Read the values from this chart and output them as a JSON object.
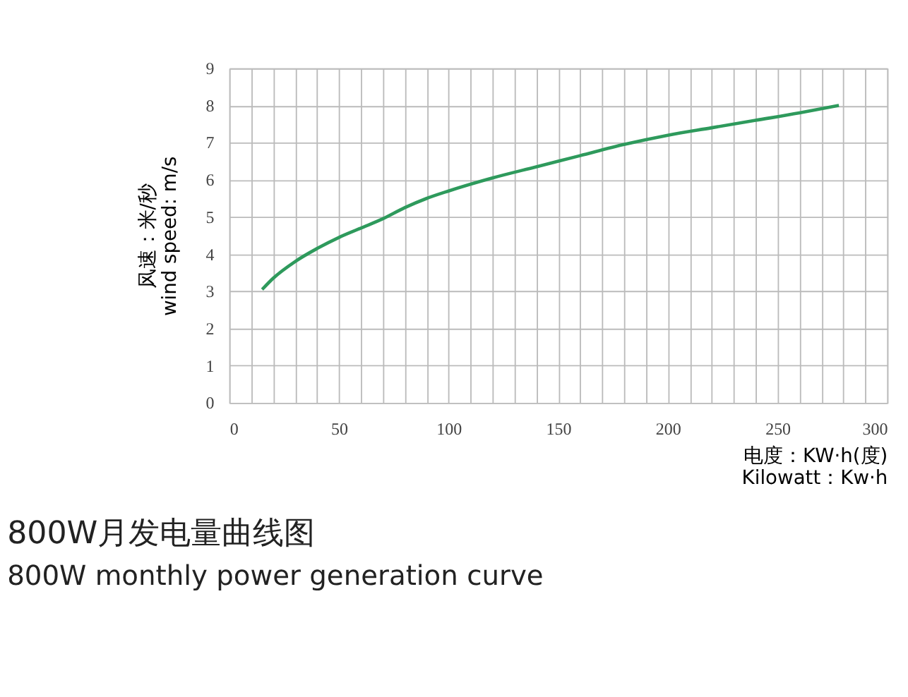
{
  "chart_data": {
    "type": "line",
    "title": "800W月发电量曲线图",
    "subtitle": "800W monthly power generation curve",
    "xlabel": [
      "电度：KW·h(度)",
      "Kilowatt：Kw·h"
    ],
    "ylabel": [
      "风速：米/秒",
      "wind speed: m/s"
    ],
    "x": [
      15,
      20,
      30,
      40,
      50,
      60,
      70,
      80,
      90,
      100,
      120,
      140,
      160,
      180,
      200,
      220,
      240,
      260,
      278
    ],
    "series": [
      {
        "color": "#2e9a5c",
        "values": [
          3.05,
          3.35,
          3.8,
          4.15,
          4.45,
          4.7,
          4.95,
          5.25,
          5.5,
          5.7,
          6.05,
          6.35,
          6.65,
          6.95,
          7.2,
          7.4,
          7.6,
          7.8,
          8.0
        ]
      }
    ],
    "xlim": [
      0,
      300
    ],
    "xticks": [
      0,
      {
        "value": 10,
        "label": null
      },
      {
        "value": 20,
        "label": null
      },
      {
        "value": 30,
        "label": null
      },
      {
        "value": 40,
        "label": null
      },
      50,
      {
        "value": 60,
        "label": null
      },
      {
        "value": 70,
        "label": null
      },
      {
        "value": 80,
        "label": null
      },
      {
        "value": 90,
        "label": null
      },
      100,
      {
        "value": 110,
        "label": null
      },
      {
        "value": 120,
        "label": null
      },
      {
        "value": 130,
        "label": null
      },
      {
        "value": 140,
        "label": null
      },
      150,
      {
        "value": 160,
        "label": null
      },
      {
        "value": 170,
        "label": null
      },
      {
        "value": 180,
        "label": null
      },
      {
        "value": 190,
        "label": null
      },
      200,
      {
        "value": 210,
        "label": null
      },
      {
        "value": 220,
        "label": null
      },
      {
        "value": 230,
        "label": null
      },
      {
        "value": 240,
        "label": null
      },
      250,
      {
        "value": 260,
        "label": null
      },
      {
        "value": 270,
        "label": null
      },
      {
        "value": 280,
        "label": null
      },
      {
        "value": 290,
        "label": null
      },
      300
    ],
    "ylim": [
      0,
      9
    ],
    "yticks": [
      0,
      1,
      2,
      3,
      4,
      5,
      6,
      7,
      8,
      9
    ],
    "grid": true,
    "marker": "none",
    "line_style": "solid"
  }
}
